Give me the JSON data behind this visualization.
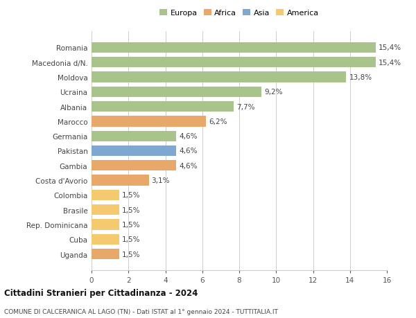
{
  "categories": [
    "Uganda",
    "Cuba",
    "Rep. Dominicana",
    "Brasile",
    "Colombia",
    "Costa d'Avorio",
    "Gambia",
    "Pakistan",
    "Germania",
    "Marocco",
    "Albania",
    "Ucraina",
    "Moldova",
    "Macedonia d/N.",
    "Romania"
  ],
  "values": [
    1.5,
    1.5,
    1.5,
    1.5,
    1.5,
    3.1,
    4.6,
    4.6,
    4.6,
    6.2,
    7.7,
    9.2,
    13.8,
    15.4,
    15.4
  ],
  "labels": [
    "1,5%",
    "1,5%",
    "1,5%",
    "1,5%",
    "1,5%",
    "3,1%",
    "4,6%",
    "4,6%",
    "4,6%",
    "6,2%",
    "7,7%",
    "9,2%",
    "13,8%",
    "15,4%",
    "15,4%"
  ],
  "colors": [
    "#e8a86a",
    "#f5c96e",
    "#f5c96e",
    "#f5c96e",
    "#f5c96e",
    "#e8a86a",
    "#e8a86a",
    "#7fa8d1",
    "#a8c48a",
    "#e8a86a",
    "#a8c48a",
    "#a8c48a",
    "#a8c48a",
    "#a8c48a",
    "#a8c48a"
  ],
  "legend": {
    "Europa": "#a8c48a",
    "Africa": "#e8a86a",
    "Asia": "#7fa8d1",
    "America": "#f5c96e"
  },
  "xlim": [
    0,
    16
  ],
  "xticks": [
    0,
    2,
    4,
    6,
    8,
    10,
    12,
    14,
    16
  ],
  "title1": "Cittadini Stranieri per Cittadinanza - 2024",
  "title2": "COMUNE DI CALCERANICA AL LAGO (TN) - Dati ISTAT al 1° gennaio 2024 - TUTTITALIA.IT",
  "background_color": "#ffffff",
  "bar_height": 0.72,
  "grid_color": "#cccccc",
  "label_fontsize": 7.5,
  "ytick_fontsize": 7.5,
  "xtick_fontsize": 7.5
}
